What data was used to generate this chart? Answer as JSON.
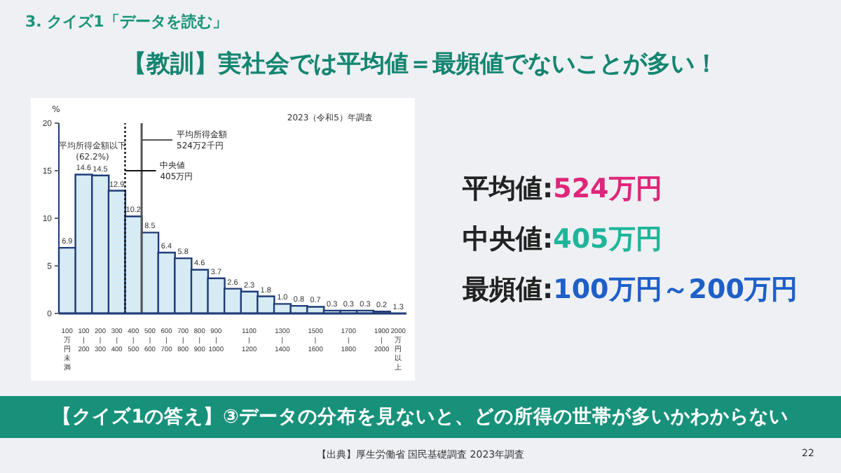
{
  "chart_data": {
    "type": "bar",
    "title": "【教訓】実社会では平均値＝最頻値でないことが多い！",
    "subtitle": "3. クイズ1「データを読む」",
    "ylabel": "%",
    "categories": [
      "100万円未満",
      "100|200",
      "200|300",
      "300|400",
      "400|500",
      "500|600",
      "600|700",
      "700|800",
      "800|900",
      "900|1000",
      null,
      "1100|1200",
      null,
      "1300|1400",
      null,
      "1500|1600",
      null,
      "1700|1800",
      null,
      "1900|2000",
      "2000万円以上"
    ],
    "values": [
      6.9,
      14.6,
      14.5,
      12.9,
      10.2,
      8.5,
      6.4,
      5.8,
      4.6,
      3.7,
      2.6,
      2.3,
      1.8,
      1.0,
      0.8,
      0.7,
      0.3,
      0.3,
      0.3,
      0.2,
      null
    ],
    "value_labels": [
      "6.9",
      "14.6",
      "14.5",
      "12.9",
      "10.2",
      "8.5",
      "6.4",
      "5.8",
      "4.6",
      "3.7",
      "2.6",
      "2.3",
      "1.8",
      "1.0",
      "0.8",
      "0.7",
      "0.3",
      "0.3",
      "0.3",
      "0.2",
      "1.3"
    ],
    "color": "#d6ebf3",
    "ylim": [
      0,
      20
    ],
    "yticks": [
      0,
      5,
      10,
      15,
      20
    ],
    "grid": false,
    "ref_lines": [
      {
        "axis": "x",
        "value": "500|600",
        "label": "平均所得金額 524万2千円",
        "color": "#555555",
        "line_style": "solid"
      },
      {
        "axis": "x",
        "value": "400|500",
        "label": "中央値 405万円",
        "color": "#111111",
        "line_style": "dotted"
      }
    ],
    "annotations": [
      "2023（令和5）年調査",
      "平均所得金額以下 (62.2%)",
      "平均値:524万円",
      "中央値:405万円",
      "最頻値:100万円～200万円",
      "【クイズ1の答え】③データの分布を見ないと、どの所得の世帯が多いかわからない",
      "【出典】厚生労働省 国民基礎調査 2023年調査",
      "22"
    ]
  }
}
